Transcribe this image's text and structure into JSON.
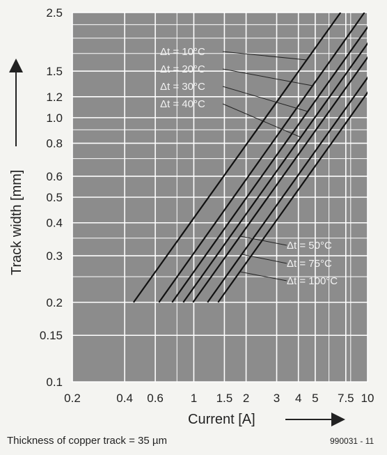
{
  "chart_data": {
    "type": "line",
    "xlabel": "Current [A]",
    "ylabel": "Track width [mm]",
    "x_scale": "log",
    "y_scale": "log",
    "xlim": [
      0.2,
      10
    ],
    "ylim": [
      0.1,
      2.5
    ],
    "grid": true,
    "x_ticks": [
      0.2,
      0.4,
      0.6,
      1,
      1.5,
      2,
      3,
      4,
      5,
      7.5,
      10
    ],
    "x_tick_labels": [
      "0.2",
      "0.4",
      "0.6",
      "1",
      "1.5",
      "2",
      "3",
      "4",
      "5",
      "7.5",
      "10"
    ],
    "y_ticks": [
      0.1,
      0.15,
      0.2,
      0.3,
      0.4,
      0.5,
      0.6,
      0.8,
      1.0,
      1.2,
      1.5,
      2.5
    ],
    "y_tick_labels": [
      "0.1",
      "0.15",
      "0.2",
      "0.3",
      "0.4",
      "0.5",
      "0.6",
      "0.8",
      "1.0",
      "1.2",
      "1.5",
      "2.5"
    ],
    "series": [
      {
        "name": "Δt = 10°C",
        "x": [
          0.45,
          7.0
        ],
        "y": [
          0.2,
          2.5
        ]
      },
      {
        "name": "Δt = 20°C",
        "x": [
          0.63,
          9.6
        ],
        "y": [
          0.2,
          2.5
        ]
      },
      {
        "name": "Δt = 30°C",
        "x": [
          0.75,
          11.5
        ],
        "y": [
          0.2,
          2.5
        ]
      },
      {
        "name": "Δt = 40°C",
        "x": [
          0.87,
          13.4
        ],
        "y": [
          0.2,
          2.5
        ]
      },
      {
        "name": "Δt = 50°C",
        "x": [
          0.99,
          15.3
        ],
        "y": [
          0.2,
          2.5
        ]
      },
      {
        "name": "Δt = 75°C",
        "x": [
          1.2,
          18.5
        ],
        "y": [
          0.2,
          2.5
        ]
      },
      {
        "name": "Δt = 100°C",
        "x": [
          1.38,
          21.3
        ],
        "y": [
          0.2,
          2.5
        ]
      }
    ]
  },
  "footer": {
    "note": "Thickness of copper track = 35 µm",
    "figure_id": "990031 - 11"
  },
  "colors": {
    "plot_background": "#8c8c8c",
    "grid": "#ffffff",
    "curve": "#111111",
    "page": "#f4f4f1"
  }
}
